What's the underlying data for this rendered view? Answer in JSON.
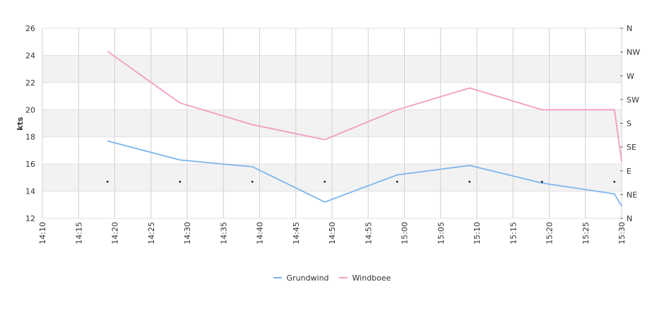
{
  "chart_data": {
    "type": "line",
    "xlabel": "",
    "ylabel": "kts",
    "x_ticks": [
      "14:10",
      "14:15",
      "14:20",
      "14:25",
      "14:30",
      "14:35",
      "14:40",
      "14:45",
      "14:50",
      "14:55",
      "15:00",
      "15:05",
      "15:10",
      "15:15",
      "15:20",
      "15:25",
      "15:30"
    ],
    "ylim": [
      12,
      26
    ],
    "y_ticks": [
      12,
      14,
      16,
      18,
      20,
      22,
      24,
      26
    ],
    "y2_ticks": [
      "N",
      "NE",
      "E",
      "SE",
      "S",
      "SW",
      "W",
      "NW",
      "N"
    ],
    "x_range_minutes": [
      0,
      80
    ],
    "series": [
      {
        "name": "Grundwind",
        "color": "#7cb5ec",
        "x": [
          "14:19",
          "14:29",
          "14:39",
          "14:49",
          "14:59",
          "15:09",
          "15:19",
          "15:29",
          "15:30"
        ],
        "values": [
          17.7,
          16.3,
          15.8,
          13.2,
          15.2,
          15.9,
          14.6,
          13.8,
          12.9
        ]
      },
      {
        "name": "Windboee",
        "color": "#f39ac3",
        "x": [
          "14:19",
          "14:29",
          "14:39",
          "14:49",
          "14:59",
          "15:09",
          "15:19",
          "15:29",
          "15:30"
        ],
        "values": [
          24.3,
          20.5,
          18.9,
          17.8,
          20.0,
          21.6,
          20.0,
          20.0,
          16.2
        ]
      }
    ],
    "direction_markers": {
      "x": [
        "14:19",
        "14:29",
        "14:39",
        "14:49",
        "14:59",
        "15:09",
        "15:19",
        "15:29"
      ],
      "values": [
        14.7,
        14.7,
        14.7,
        14.7,
        14.7,
        14.7,
        14.7,
        14.7
      ]
    },
    "grid": true,
    "legend_position": "bottom"
  }
}
